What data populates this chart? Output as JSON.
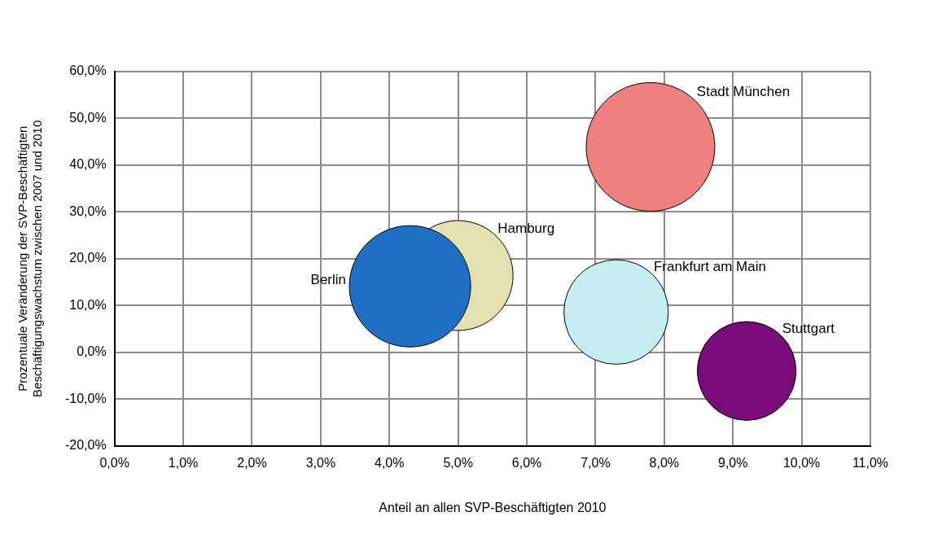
{
  "chart_data": {
    "type": "bubble",
    "xlabel": "Anteil an allen SVP-Beschäftigten 2010",
    "ylabel": "Prozentuale Veränderung der SVP-Beschäftigten\nBeschäftigungswachstum zwischen 2007 und 2010",
    "series": [
      {
        "name": "Berlin",
        "color": "#1f6fc5",
        "x": [
          4.3
        ],
        "values": [
          14.1
        ],
        "sizes": [
          0.89
        ]
      },
      {
        "name": "Hamburg",
        "color": "#e4e0b0",
        "x": [
          5.0
        ],
        "values": [
          16.4
        ],
        "sizes": [
          0.73
        ]
      },
      {
        "name": "Stadt München",
        "color": "#f08080",
        "x": [
          7.8
        ],
        "values": [
          43.9
        ],
        "sizes": [
          1
        ]
      },
      {
        "name": "Frankfurt am Main",
        "color": "#c6eef0",
        "x": [
          7.3
        ],
        "values": [
          8.6
        ],
        "sizes": [
          0.66
        ]
      },
      {
        "name": "Stuttgart",
        "color": "#7a0a7a",
        "x": [
          9.2
        ],
        "values": [
          -4.0
        ],
        "sizes": [
          0.59
        ]
      }
    ],
    "xlim": [
      0,
      11
    ],
    "xticks": [
      {
        "value": 0,
        "label": "0,0%"
      },
      {
        "value": 1,
        "label": "1,0%"
      },
      {
        "value": 2,
        "label": "2,0%"
      },
      {
        "value": 3,
        "label": "3,0%"
      },
      {
        "value": 4,
        "label": "4,0%"
      },
      {
        "value": 5,
        "label": "5,0%"
      },
      {
        "value": 6,
        "label": "6,0%"
      },
      {
        "value": 7,
        "label": "7,0%"
      },
      {
        "value": 8,
        "label": "8,0%"
      },
      {
        "value": 9,
        "label": "9,0%"
      },
      {
        "value": 10,
        "label": "10,0%"
      },
      {
        "value": 11,
        "label": "11,0%"
      }
    ],
    "ylim": [
      -20,
      60
    ],
    "yticks": [
      {
        "value": -20,
        "label": "-20,0%"
      },
      {
        "value": -10,
        "label": "-10,0%"
      },
      {
        "value": 0,
        "label": "0,0%"
      },
      {
        "value": 10,
        "label": "10,0%"
      },
      {
        "value": 20,
        "label": "20,0%"
      },
      {
        "value": 30,
        "label": "30,0%"
      },
      {
        "value": 40,
        "label": "40,0%"
      },
      {
        "value": 50,
        "label": "50,0%"
      },
      {
        "value": 60,
        "label": "60,0%"
      }
    ],
    "grid": true,
    "legend": false
  }
}
